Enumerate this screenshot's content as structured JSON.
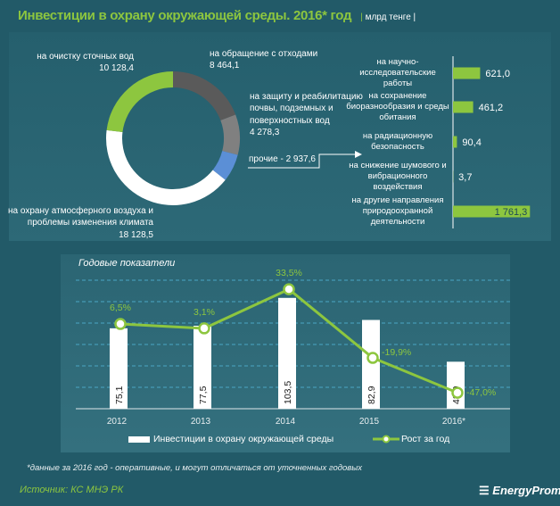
{
  "title": "Инвестиции в охрану окружающей среды. 2016*  год",
  "unit": "млрд тенге",
  "chart_data": [
    {
      "type": "pie",
      "donut": true,
      "slices": [
        {
          "label": "на обращение с отходами",
          "value": 8464.1,
          "display": "8 464,1",
          "color": "#5a5a5a"
        },
        {
          "label": "на защиту и реабилитацию почвы, подземных и поверхностных вод",
          "value": 4278.3,
          "display": "4 278,3",
          "color": "#808080"
        },
        {
          "label": "прочие",
          "value": 2937.6,
          "display": "прочие - 2 937,6",
          "color": "#5b8fd6"
        },
        {
          "label": "на охрану атмосферного воздуха и проблемы изменения климата",
          "value": 18128.5,
          "display": "18 128,5",
          "color": "#ffffff"
        },
        {
          "label": "на очистку сточных вод",
          "value": 10128.4,
          "display": "10 128,4",
          "color": "#8dc63f"
        }
      ]
    },
    {
      "type": "bar",
      "orientation": "horizontal",
      "color": "#8dc63f",
      "categories": [
        "на научно-исследовательские работы",
        "на сохранение биоразнообразия и среды обитания",
        "на радиационную безопасность",
        "на снижение шумового и вибрационного воздействия",
        "на другие направления природоохранной деятельности"
      ],
      "values": [
        621.0,
        461.2,
        90.4,
        3.7,
        1761.3
      ],
      "labels": [
        "621,0",
        "461,2",
        "90,4",
        "3,7",
        "1 761,3"
      ]
    },
    {
      "type": "bar+line",
      "title": "Годовые показатели",
      "categories": [
        "2012",
        "2013",
        "2014",
        "2015",
        "2016*"
      ],
      "series": [
        {
          "name": "Инвестиции в охрану окружающей среды",
          "type": "bar",
          "color": "#ffffff",
          "values": [
            75.1,
            77.5,
            103.5,
            82.9,
            43.9
          ],
          "labels": [
            "75,1",
            "77,5",
            "103,5",
            "82,9",
            "43,9"
          ]
        },
        {
          "name": "Рост за год",
          "type": "line",
          "color": "#8dc63f",
          "values": [
            6.5,
            3.1,
            33.5,
            -19.9,
            -47.0
          ],
          "labels": [
            "6,5%",
            "3,1%",
            "33,5%",
            "-19,9%",
            "-47,0%"
          ]
        }
      ],
      "grid": true,
      "legend": "bottom"
    }
  ],
  "footnote": "*данные за 2016 год - оперативные, и могут отличаться от уточненных годовых",
  "source": "Источник: КС МНЭ РК",
  "logo": "EnergyProm"
}
